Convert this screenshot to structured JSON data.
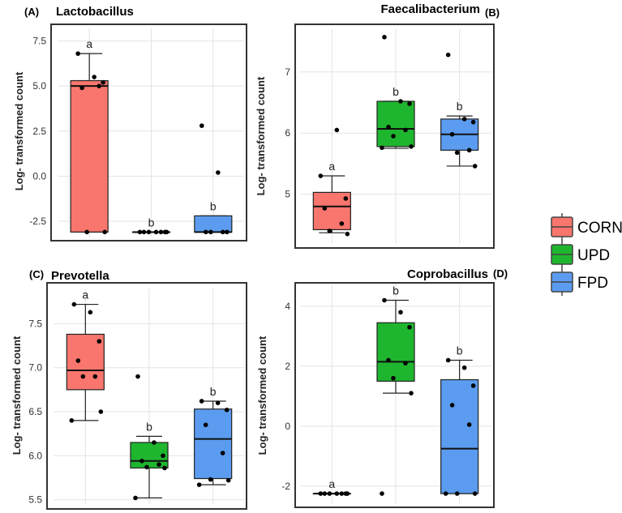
{
  "legend": [
    {
      "label": "CORN",
      "color": "#F8766D"
    },
    {
      "label": "UPD",
      "color": "#1FB62F"
    },
    {
      "label": "FPD",
      "color": "#5B9CF0"
    }
  ],
  "chart_data": [
    {
      "type": "box",
      "panel": "(A)",
      "title": "Lactobacillus",
      "ylabel": "Log- transformed count",
      "ylim": [
        -3.4,
        8.2
      ],
      "yticks": [
        -2.5,
        0.0,
        2.5,
        5.0,
        7.5
      ],
      "ytick_labels": [
        "-2.5",
        "0.0",
        "2.5",
        "5.0",
        "7.5"
      ],
      "categories": [
        "CORN",
        "UPD",
        "FPD"
      ],
      "boxes": [
        {
          "group": "CORN",
          "min": -3.1,
          "q1": -3.1,
          "median": 5.0,
          "q3": 5.3,
          "max": 6.8,
          "sig": "a",
          "points": [
            6.8,
            5.5,
            5.2,
            4.9,
            5.0,
            -3.1,
            -3.1
          ]
        },
        {
          "group": "UPD",
          "min": -3.1,
          "q1": -3.1,
          "median": -3.1,
          "q3": -3.1,
          "max": -3.1,
          "sig": "b",
          "points": [
            -3.1,
            -3.1,
            -3.1,
            -3.1,
            -3.1,
            -3.1,
            -3.1
          ]
        },
        {
          "group": "FPD",
          "min": -3.1,
          "q1": -3.1,
          "median": -3.1,
          "q3": -2.2,
          "max": -2.2,
          "sig": "b",
          "points": [
            2.8,
            0.2,
            -3.1,
            -3.1,
            -3.1,
            -3.1
          ]
        }
      ]
    },
    {
      "type": "box",
      "panel": "(B)",
      "title": "Faecalibacterium",
      "ylabel": "Log- transformed count",
      "ylim": [
        4.2,
        7.7
      ],
      "yticks": [
        5,
        6,
        7
      ],
      "ytick_labels": [
        "5",
        "6",
        "7"
      ],
      "categories": [
        "CORN",
        "UPD",
        "FPD"
      ],
      "boxes": [
        {
          "group": "CORN",
          "min": 4.37,
          "q1": 4.42,
          "median": 4.8,
          "q3": 5.03,
          "max": 5.3,
          "sig": "a",
          "points": [
            5.3,
            6.05,
            4.93,
            4.77,
            4.52,
            4.4,
            4.35
          ]
        },
        {
          "group": "UPD",
          "min": 5.75,
          "q1": 5.78,
          "median": 6.07,
          "q3": 6.52,
          "max": 6.52,
          "sig": "b",
          "points": [
            7.57,
            6.52,
            6.48,
            6.1,
            6.05,
            5.95,
            5.78,
            5.76
          ]
        },
        {
          "group": "FPD",
          "min": 5.46,
          "q1": 5.72,
          "median": 5.98,
          "q3": 6.23,
          "max": 6.28,
          "sig": "b",
          "points": [
            7.28,
            6.23,
            6.18,
            5.98,
            5.72,
            5.68,
            5.46
          ]
        }
      ]
    },
    {
      "type": "box",
      "panel": "(C)",
      "title": "Prevotella",
      "ylabel": "Log- transformed count",
      "ylim": [
        5.45,
        7.9
      ],
      "yticks": [
        5.5,
        6.0,
        6.5,
        7.0,
        7.5
      ],
      "ytick_labels": [
        "5.5",
        "6.0",
        "6.5",
        "7.0",
        "7.5"
      ],
      "categories": [
        "CORN",
        "UPD",
        "FPD"
      ],
      "boxes": [
        {
          "group": "CORN",
          "min": 6.4,
          "q1": 6.75,
          "median": 6.97,
          "q3": 7.38,
          "max": 7.72,
          "sig": "a",
          "points": [
            7.72,
            7.63,
            7.3,
            7.08,
            6.9,
            6.9,
            6.5,
            6.4
          ]
        },
        {
          "group": "UPD",
          "min": 5.52,
          "q1": 5.86,
          "median": 5.94,
          "q3": 6.15,
          "max": 6.22,
          "sig": "b",
          "points": [
            6.9,
            6.15,
            6.0,
            5.94,
            5.9,
            5.87,
            5.86,
            5.52
          ]
        },
        {
          "group": "FPD",
          "min": 5.67,
          "q1": 5.74,
          "median": 6.19,
          "q3": 6.53,
          "max": 6.62,
          "sig": "b",
          "points": [
            6.62,
            6.6,
            6.52,
            6.35,
            6.03,
            5.73,
            5.72,
            5.67
          ]
        }
      ]
    },
    {
      "type": "box",
      "panel": "(D)",
      "title": "Coprobacillus",
      "ylabel": "Log- transformed count",
      "ylim": [
        -2.6,
        4.7
      ],
      "yticks": [
        -2,
        0,
        2,
        4
      ],
      "ytick_labels": [
        "-2",
        "0",
        "2",
        "4"
      ],
      "categories": [
        "CORN",
        "UPD",
        "FPD"
      ],
      "boxes": [
        {
          "group": "CORN",
          "min": -2.25,
          "q1": -2.25,
          "median": -2.25,
          "q3": -2.25,
          "max": -2.25,
          "sig": "a",
          "points": [
            -2.25,
            -2.25,
            -2.25,
            -2.25,
            -2.25,
            -2.25,
            -2.25
          ]
        },
        {
          "group": "UPD",
          "min": 1.1,
          "q1": 1.5,
          "median": 2.15,
          "q3": 3.45,
          "max": 4.2,
          "sig": "b",
          "points": [
            4.2,
            3.8,
            3.3,
            2.2,
            2.1,
            1.6,
            1.1,
            -2.25
          ]
        },
        {
          "group": "FPD",
          "min": -2.25,
          "q1": -2.25,
          "median": -0.75,
          "q3": 1.55,
          "max": 2.2,
          "sig": "b",
          "points": [
            2.2,
            1.95,
            1.35,
            0.7,
            0.05,
            -2.25,
            -2.25,
            -2.25
          ]
        }
      ]
    }
  ]
}
